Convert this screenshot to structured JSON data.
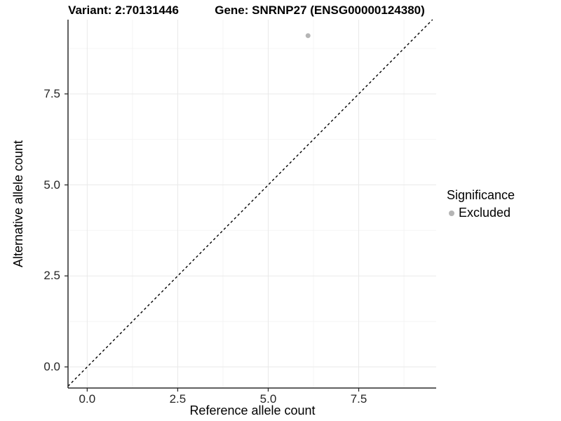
{
  "chart_data": {
    "type": "scatter",
    "titles": {
      "left": "Variant: 2:70131446",
      "right": "Gene: SNRNP27 (ENSG00000124380)"
    },
    "xlabel": "Reference allele count",
    "ylabel": "Alternative allele count",
    "xlim": [
      -0.53,
      9.64
    ],
    "ylim": [
      -0.58,
      9.54
    ],
    "x_ticks": [
      0,
      2.5,
      5,
      7.5
    ],
    "x_tick_labels": [
      "0.0",
      "2.5",
      "5.0",
      "7.5"
    ],
    "x_minor_ticks": [
      1.25,
      3.75,
      6.25,
      8.75
    ],
    "y_ticks": [
      0,
      2.5,
      5,
      7.5
    ],
    "y_tick_labels": [
      "0.0",
      "2.5",
      "5.0",
      "7.5"
    ],
    "y_minor_ticks": [
      1.25,
      3.75,
      6.25,
      8.75
    ],
    "grid": "major and minor gridlines, light gray on white panel",
    "series": [
      {
        "name": "Excluded",
        "marker": "circle",
        "color": "#b5b5b5",
        "points": [
          {
            "x": 6.1,
            "y": 9.1
          }
        ]
      }
    ],
    "reference_line": {
      "kind": "identity y = x",
      "style": "dashed",
      "color": "#000000"
    },
    "legend": {
      "position": "right",
      "title": "Significance",
      "entries": [
        {
          "label": "Excluded",
          "color": "#b5b5b5",
          "marker": "circle"
        }
      ]
    },
    "colors": {
      "axis": "#2b2b2b",
      "tick_text": "#262626",
      "grid_major": "#e9e9e9",
      "grid_minor": "#f4f4f4",
      "point": "#b5b5b5"
    }
  }
}
